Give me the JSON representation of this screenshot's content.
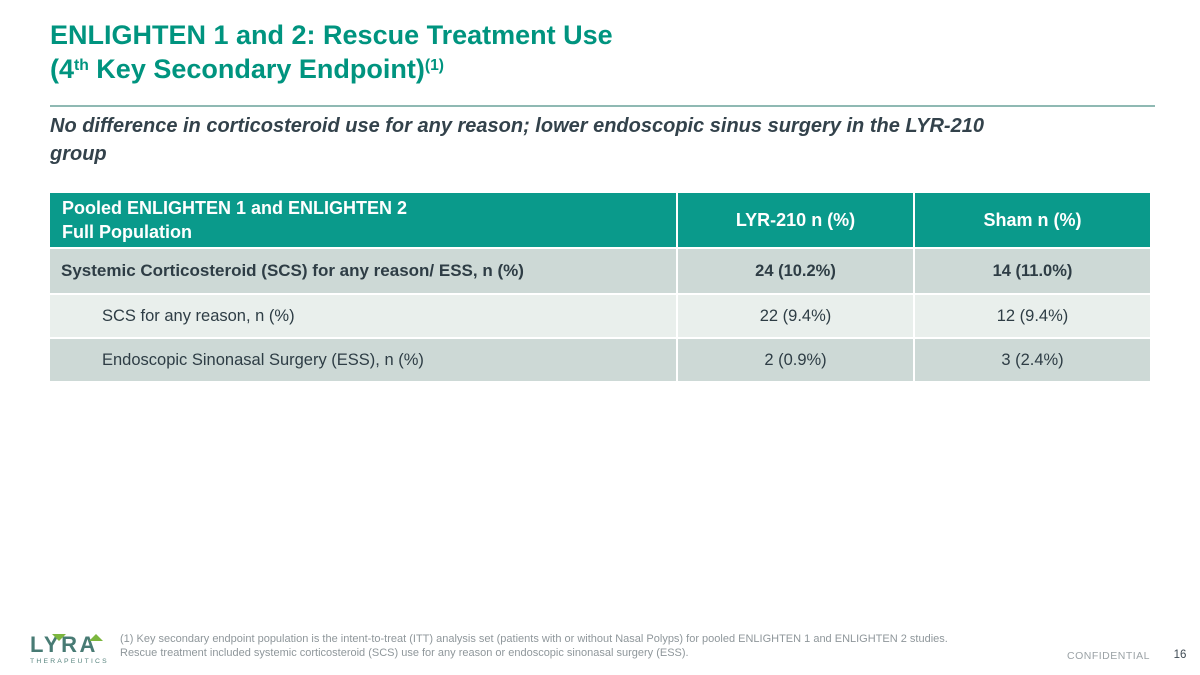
{
  "title": {
    "line1": "ENLIGHTEN 1 and 2: Rescue Treatment Use",
    "line2": {
      "open": "(4",
      "sup1": "th",
      "rest": " Key Secondary Endpoint)",
      "sup2": "(1)"
    }
  },
  "subtitle": {
    "line1": "No difference in corticosteroid use for any reason; lower endoscopic sinus surgery in the LYR-210",
    "line2": "group"
  },
  "table": {
    "header": {
      "population_line1": "Pooled ENLIGHTEN 1 and ENLIGHTEN 2",
      "population_line2": "Full Population",
      "col_lyr210": "LYR-210 n (%)",
      "col_sham": "Sham n (%)"
    },
    "rows": [
      {
        "label": "Systemic Corticosteroid (SCS) for any reason/ ESS, n (%)",
        "lyr210": "24 (10.2%)",
        "sham": "14 (11.0%)"
      },
      {
        "label": "SCS for any reason, n (%)",
        "lyr210": "22 (9.4%)",
        "sham": "12 (9.4%)"
      },
      {
        "label": "Endoscopic Sinonasal Surgery (ESS), n (%)",
        "lyr210": "2 (0.9%)",
        "sham": "3 (2.4%)"
      }
    ]
  },
  "footer": {
    "logo_word": "LYRA",
    "logo_sub": "THERAPEUTICS",
    "footnote_line1": "(1) Key secondary endpoint population is the intent-to-treat (ITT) analysis set (patients with or without Nasal Polyps) for pooled ENLIGHTEN 1 and ENLIGHTEN 2 studies.",
    "footnote_line2": "Rescue treatment included systemic corticosteroid (SCS) use for any reason or endoscopic sinonasal surgery (ESS).",
    "confidential": "CONFIDENTIAL",
    "page_number": "16"
  },
  "colors": {
    "title_teal": "#00947f",
    "table_header_teal": "#0a9a8b",
    "row_stripe_dark": "#cdd9d6",
    "row_stripe_light": "#e9efec",
    "dark_text": "#2e3d45",
    "logo_green": "#7cb63e",
    "logo_teal": "#487b74"
  }
}
